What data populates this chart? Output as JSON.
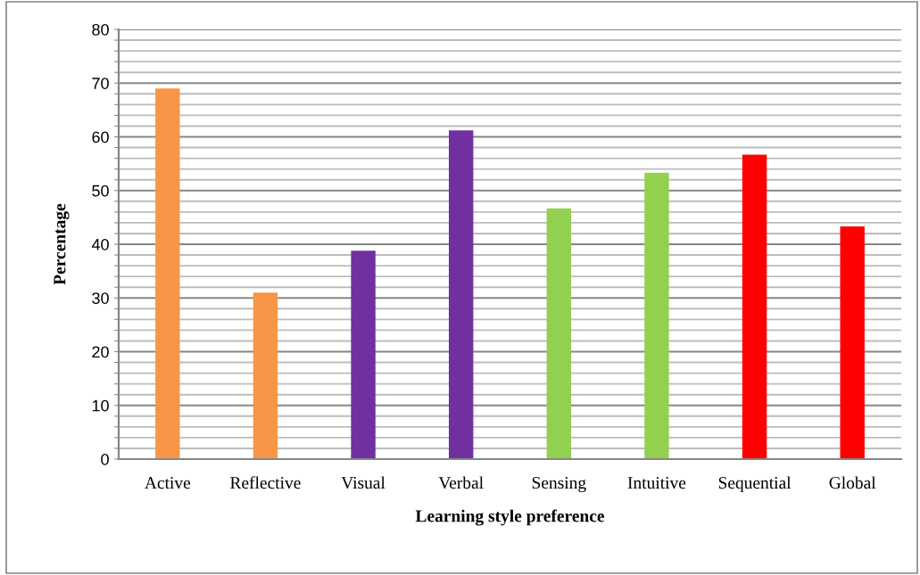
{
  "chart_data": {
    "type": "bar",
    "categories": [
      "Active",
      "Reflective",
      "Visual",
      "Verbal",
      "Sensing",
      "Intuitive",
      "Sequential",
      "Global"
    ],
    "values": [
      69,
      31,
      38.8,
      61.2,
      46.7,
      53.3,
      56.7,
      43.3
    ],
    "colors": [
      "#f79646",
      "#f79646",
      "#7030a0",
      "#7030a0",
      "#92d050",
      "#92d050",
      "#ff0000",
      "#ff0000"
    ],
    "xlabel": "Learning style preference",
    "ylabel": "Percentage",
    "ylim": [
      0,
      80
    ],
    "yticks": [
      0,
      {
        "value": 2,
        "label": null
      },
      {
        "value": 4,
        "label": null
      },
      {
        "value": 6,
        "label": null
      },
      {
        "value": 8,
        "label": null
      },
      10,
      {
        "value": 12,
        "label": null
      },
      {
        "value": 14,
        "label": null
      },
      {
        "value": 16,
        "label": null
      },
      {
        "value": 18,
        "label": null
      },
      20,
      {
        "value": 22,
        "label": null
      },
      {
        "value": 24,
        "label": null
      },
      {
        "value": 26,
        "label": null
      },
      {
        "value": 28,
        "label": null
      },
      30,
      {
        "value": 32,
        "label": null
      },
      {
        "value": 34,
        "label": null
      },
      {
        "value": 36,
        "label": null
      },
      {
        "value": 38,
        "label": null
      },
      40,
      {
        "value": 42,
        "label": null
      },
      {
        "value": 44,
        "label": null
      },
      {
        "value": 46,
        "label": null
      },
      {
        "value": 48,
        "label": null
      },
      50,
      {
        "value": 52,
        "label": null
      },
      {
        "value": 54,
        "label": null
      },
      {
        "value": 56,
        "label": null
      },
      {
        "value": 58,
        "label": null
      },
      60,
      {
        "value": 62,
        "label": null
      },
      {
        "value": 64,
        "label": null
      },
      {
        "value": 66,
        "label": null
      },
      {
        "value": 68,
        "label": null
      },
      70,
      {
        "value": 72,
        "label": null
      },
      {
        "value": 74,
        "label": null
      },
      {
        "value": 76,
        "label": null
      },
      {
        "value": 78,
        "label": null
      },
      80
    ],
    "grid": "y"
  }
}
